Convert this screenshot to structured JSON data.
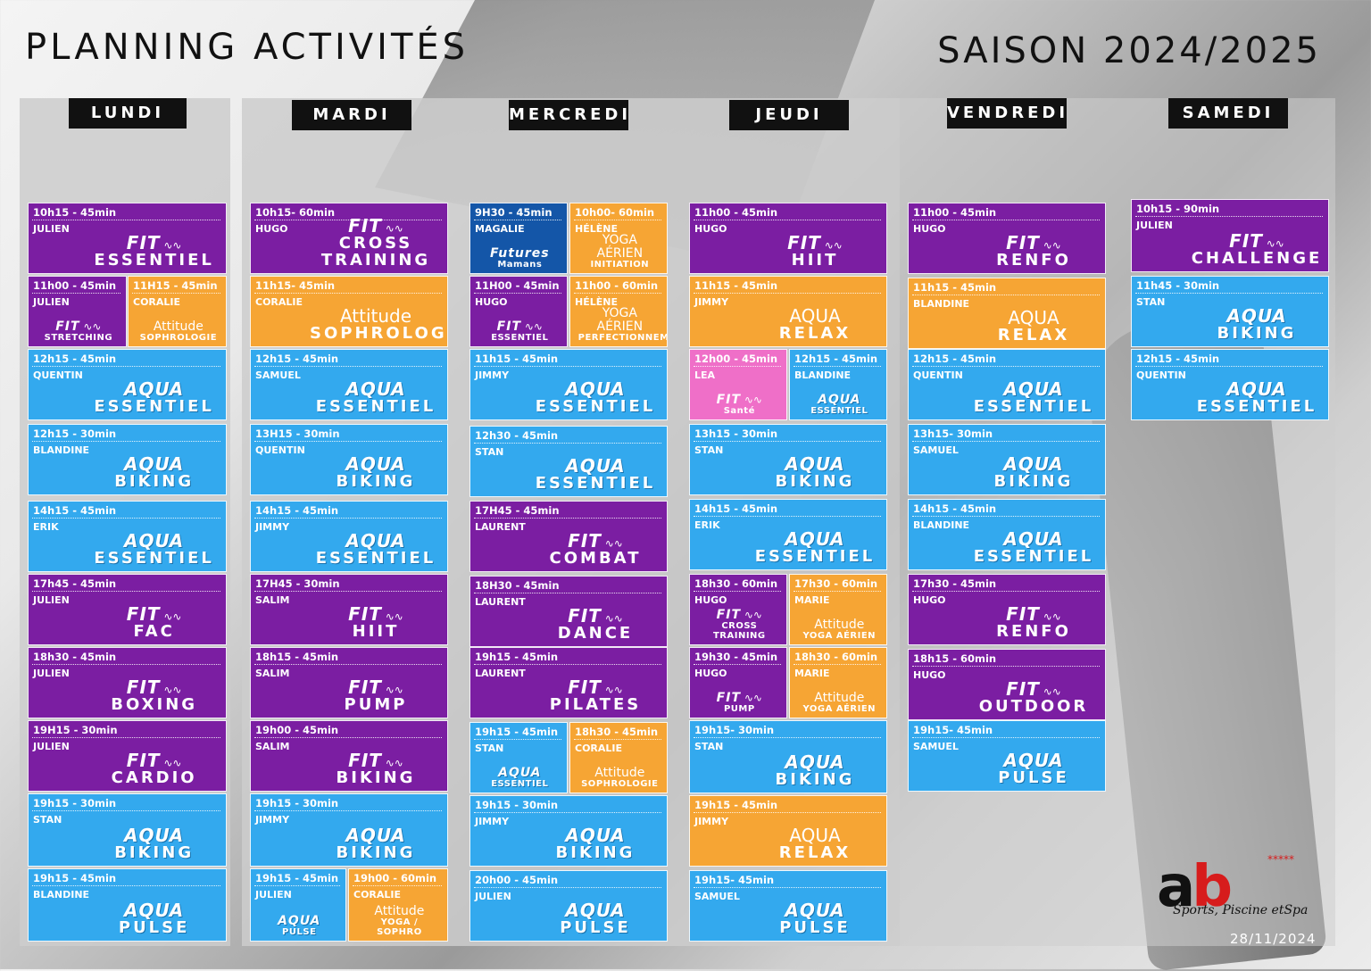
{
  "header": {
    "title": "PLANNING ACTIVITÉS",
    "season": "SAISON 2024/2025"
  },
  "days": [
    "LUNDI",
    "MARDI",
    "MERCREDI",
    "JEUDI",
    "VENDREDI",
    "SAMEDI"
  ],
  "cards": [
    {
      "day": "LUNDI",
      "time": "10h15 - 45min",
      "coach": "JULIEN",
      "line1": "FIT",
      "line2": "ESSENTIEL",
      "color": "purple"
    },
    {
      "day": "LUNDI",
      "time": "11h00 - 45min",
      "coach": "JULIEN",
      "line1": "FIT",
      "line2": "STRETCHING",
      "color": "purple"
    },
    {
      "day": "LUNDI",
      "time": "11H15 - 45min",
      "coach": "CORALIE",
      "line1": "Attitude",
      "line2": "SOPHROLOGIE",
      "color": "orange"
    },
    {
      "day": "LUNDI",
      "time": "12h15 - 45min",
      "coach": "QUENTIN",
      "line1": "AQUA",
      "line2": "ESSENTIEL",
      "color": "blue"
    },
    {
      "day": "LUNDI",
      "time": "12h15 - 30min",
      "coach": "BLANDINE",
      "line1": "AQUA",
      "line2": "BIKING",
      "color": "blue"
    },
    {
      "day": "LUNDI",
      "time": "14h15 - 45min",
      "coach": "ERIK",
      "line1": "AQUA",
      "line2": "ESSENTIEL",
      "color": "blue"
    },
    {
      "day": "LUNDI",
      "time": "17h45 - 45min",
      "coach": "JULIEN",
      "line1": "FIT",
      "line2": "FAC",
      "color": "purple"
    },
    {
      "day": "LUNDI",
      "time": "18h30 - 45min",
      "coach": "JULIEN",
      "line1": "FIT",
      "line2": "BOXING",
      "color": "purple"
    },
    {
      "day": "LUNDI",
      "time": "19H15 - 30min",
      "coach": "JULIEN",
      "line1": "FIT",
      "line2": "CARDIO",
      "color": "purple"
    },
    {
      "day": "LUNDI",
      "time": "19h15 - 30min",
      "coach": "STAN",
      "line1": "AQUA",
      "line2": "BIKING",
      "color": "blue"
    },
    {
      "day": "LUNDI",
      "time": "19h15 - 45min",
      "coach": "BLANDINE",
      "line1": "AQUA",
      "line2": "PULSE",
      "color": "blue"
    },
    {
      "day": "MARDI",
      "time": "10h15- 60min",
      "coach": "HUGO",
      "line1": "FIT",
      "line2": "CROSS TRAINING",
      "color": "purple"
    },
    {
      "day": "MARDI",
      "time": "11h15- 45min",
      "coach": "CORALIE",
      "line1": "Attitude",
      "line2": "SOPHROLOGIE",
      "color": "orange"
    },
    {
      "day": "MARDI",
      "time": "12h15 - 45min",
      "coach": "SAMUEL",
      "line1": "AQUA",
      "line2": "ESSENTIEL",
      "color": "blue"
    },
    {
      "day": "MARDI",
      "time": "13H15 - 30min",
      "coach": "QUENTIN",
      "line1": "AQUA",
      "line2": "BIKING",
      "color": "blue"
    },
    {
      "day": "MARDI",
      "time": "14h15 - 45min",
      "coach": "JIMMY",
      "line1": "AQUA",
      "line2": "ESSENTIEL",
      "color": "blue"
    },
    {
      "day": "MARDI",
      "time": "17H45 - 30min",
      "coach": "SALIM",
      "line1": "FIT",
      "line2": "HIIT",
      "color": "purple"
    },
    {
      "day": "MARDI",
      "time": "18h15 - 45min",
      "coach": "SALIM",
      "line1": "FIT",
      "line2": "PUMP",
      "color": "purple"
    },
    {
      "day": "MARDI",
      "time": "19h00 - 45min",
      "coach": "SALIM",
      "line1": "FIT",
      "line2": "BIKING",
      "color": "purple"
    },
    {
      "day": "MARDI",
      "time": "19h15 - 30min",
      "coach": "JIMMY",
      "line1": "AQUA",
      "line2": "BIKING",
      "color": "blue"
    },
    {
      "day": "MARDI",
      "time": "19h15 - 45min",
      "coach": "JULIEN",
      "line1": "AQUA",
      "line2": "PULSE",
      "color": "blue"
    },
    {
      "day": "MARDI",
      "time": "19h00 - 60min",
      "coach": "CORALIE",
      "line1": "Attitude",
      "line2": "YOGA / SOPHRO",
      "color": "orange"
    },
    {
      "day": "MERCREDI",
      "time": "9H30 - 45min",
      "coach": "MAGALIE",
      "line1": "Futures",
      "line2": "Mamans",
      "color": "navy"
    },
    {
      "day": "MERCREDI",
      "time": "10h00- 60min",
      "coach": "HÉLÈNE",
      "line1": "YOGA AÉRIEN",
      "line2": "INITIATION",
      "color": "orange"
    },
    {
      "day": "MERCREDI",
      "time": "11H00 - 45min",
      "coach": "HUGO",
      "line1": "FIT",
      "line2": "ESSENTIEL",
      "color": "purple"
    },
    {
      "day": "MERCREDI",
      "time": "11h00 - 60min",
      "coach": "HÉLÈNE",
      "line1": "YOGA AÉRIEN",
      "line2": "PERFECTIONNEMENT",
      "color": "orange"
    },
    {
      "day": "MERCREDI",
      "time": "11h15 - 45min",
      "coach": "JIMMY",
      "line1": "AQUA",
      "line2": "ESSENTIEL",
      "color": "blue"
    },
    {
      "day": "MERCREDI",
      "time": "12h30 - 45min",
      "coach": "STAN",
      "line1": "AQUA",
      "line2": "ESSENTIEL",
      "color": "blue"
    },
    {
      "day": "MERCREDI",
      "time": "17H45 - 45min",
      "coach": "LAURENT",
      "line1": "FIT",
      "line2": "COMBAT",
      "color": "purple"
    },
    {
      "day": "MERCREDI",
      "time": "18H30 - 45min",
      "coach": "LAURENT",
      "line1": "FIT",
      "line2": "DANCE",
      "color": "purple"
    },
    {
      "day": "MERCREDI",
      "time": "19h15 - 45min",
      "coach": "LAURENT",
      "line1": "FIT",
      "line2": "PILATES",
      "color": "purple"
    },
    {
      "day": "MERCREDI",
      "time": "19h15 - 45min",
      "coach": "STAN",
      "line1": "AQUA",
      "line2": "ESSENTIEL",
      "color": "blue"
    },
    {
      "day": "MERCREDI",
      "time": "18h30 - 45min",
      "coach": "CORALIE",
      "line1": "Attitude",
      "line2": "SOPHROLOGIE",
      "color": "orange"
    },
    {
      "day": "MERCREDI",
      "time": "19h15 - 30min",
      "coach": "JIMMY",
      "line1": "AQUA",
      "line2": "BIKING",
      "color": "blue"
    },
    {
      "day": "MERCREDI",
      "time": "20h00 - 45min",
      "coach": "JULIEN",
      "line1": "AQUA",
      "line2": "PULSE",
      "color": "blue"
    },
    {
      "day": "JEUDI",
      "time": "11h00 - 45min",
      "coach": "HUGO",
      "line1": "FIT",
      "line2": "HIIT",
      "color": "purple"
    },
    {
      "day": "JEUDI",
      "time": "11h15 - 45min",
      "coach": "JIMMY",
      "line1": "AQUA",
      "line2": "RELAX",
      "color": "orange"
    },
    {
      "day": "JEUDI",
      "time": "12h00 - 45min",
      "coach": "LEA",
      "line1": "FIT",
      "line2": "Santé",
      "color": "pink"
    },
    {
      "day": "JEUDI",
      "time": "12h15 - 45min",
      "coach": "BLANDINE",
      "line1": "AQUA",
      "line2": "ESSENTIEL",
      "color": "blue"
    },
    {
      "day": "JEUDI",
      "time": "13h15 - 30min",
      "coach": "STAN",
      "line1": "AQUA",
      "line2": "BIKING",
      "color": "blue"
    },
    {
      "day": "JEUDI",
      "time": "14h15 - 45min",
      "coach": "ERIK",
      "line1": "AQUA",
      "line2": "ESSENTIEL",
      "color": "blue"
    },
    {
      "day": "JEUDI",
      "time": "18h30 - 60min",
      "coach": "HUGO",
      "line1": "FIT",
      "line2": "CROSS TRAINING",
      "color": "purple"
    },
    {
      "day": "JEUDI",
      "time": "17h30 - 60min",
      "coach": "MARIE",
      "line1": "Attitude",
      "line2": "YOGA AÉRIEN",
      "color": "orange"
    },
    {
      "day": "JEUDI",
      "time": "19h30 - 45min",
      "coach": "HUGO",
      "line1": "FIT",
      "line2": "PUMP",
      "color": "purple"
    },
    {
      "day": "JEUDI",
      "time": "18h30 - 60min",
      "coach": "MARIE",
      "line1": "Attitude",
      "line2": "YOGA AÉRIEN",
      "color": "orange"
    },
    {
      "day": "JEUDI",
      "time": "19h15- 30min",
      "coach": "STAN",
      "line1": "AQUA",
      "line2": "BIKING",
      "color": "blue"
    },
    {
      "day": "JEUDI",
      "time": "19h15 - 45min",
      "coach": "JIMMY",
      "line1": "AQUA",
      "line2": "RELAX",
      "color": "orange"
    },
    {
      "day": "JEUDI",
      "time": "19h15- 45min",
      "coach": "SAMUEL",
      "line1": "AQUA",
      "line2": "PULSE",
      "color": "blue"
    },
    {
      "day": "VENDREDI",
      "time": "11h00 - 45min",
      "coach": "HUGO",
      "line1": "FIT",
      "line2": "RENFO",
      "color": "purple"
    },
    {
      "day": "VENDREDI",
      "time": "11h15 - 45min",
      "coach": "BLANDINE",
      "line1": "AQUA",
      "line2": "RELAX",
      "color": "orange"
    },
    {
      "day": "VENDREDI",
      "time": "12h15 - 45min",
      "coach": "QUENTIN",
      "line1": "AQUA",
      "line2": "ESSENTIEL",
      "color": "blue"
    },
    {
      "day": "VENDREDI",
      "time": "13h15- 30min",
      "coach": "SAMUEL",
      "line1": "AQUA",
      "line2": "BIKING",
      "color": "blue"
    },
    {
      "day": "VENDREDI",
      "time": "14h15 - 45min",
      "coach": "BLANDINE",
      "line1": "AQUA",
      "line2": "ESSENTIEL",
      "color": "blue"
    },
    {
      "day": "VENDREDI",
      "time": "17h30 - 45min",
      "coach": "HUGO",
      "line1": "FIT",
      "line2": "RENFO",
      "color": "purple"
    },
    {
      "day": "VENDREDI",
      "time": "18h15 - 60min",
      "coach": "HUGO",
      "line1": "FIT",
      "line2": "OUTDOOR",
      "color": "purple"
    },
    {
      "day": "VENDREDI",
      "time": "19h15- 45min",
      "coach": "SAMUEL",
      "line1": "AQUA",
      "line2": "PULSE",
      "color": "blue"
    },
    {
      "day": "SAMEDI",
      "time": "10h15 - 90min",
      "coach": "JULIEN",
      "line1": "FIT",
      "line2": "CHALLENGE",
      "color": "purple"
    },
    {
      "day": "SAMEDI",
      "time": "11h45 - 30min",
      "coach": "STAN",
      "line1": "AQUA",
      "line2": "BIKING",
      "color": "blue"
    },
    {
      "day": "SAMEDI",
      "time": "12h15 - 45min",
      "coach": "QUENTIN",
      "line1": "AQUA",
      "line2": "ESSENTIEL",
      "color": "blue"
    }
  ],
  "logo": {
    "mark_a": "a",
    "mark_b": "b",
    "stars": "*****",
    "tagline": "Sports, Piscine etSpa"
  },
  "footer": {
    "date": "28/11/2024"
  }
}
